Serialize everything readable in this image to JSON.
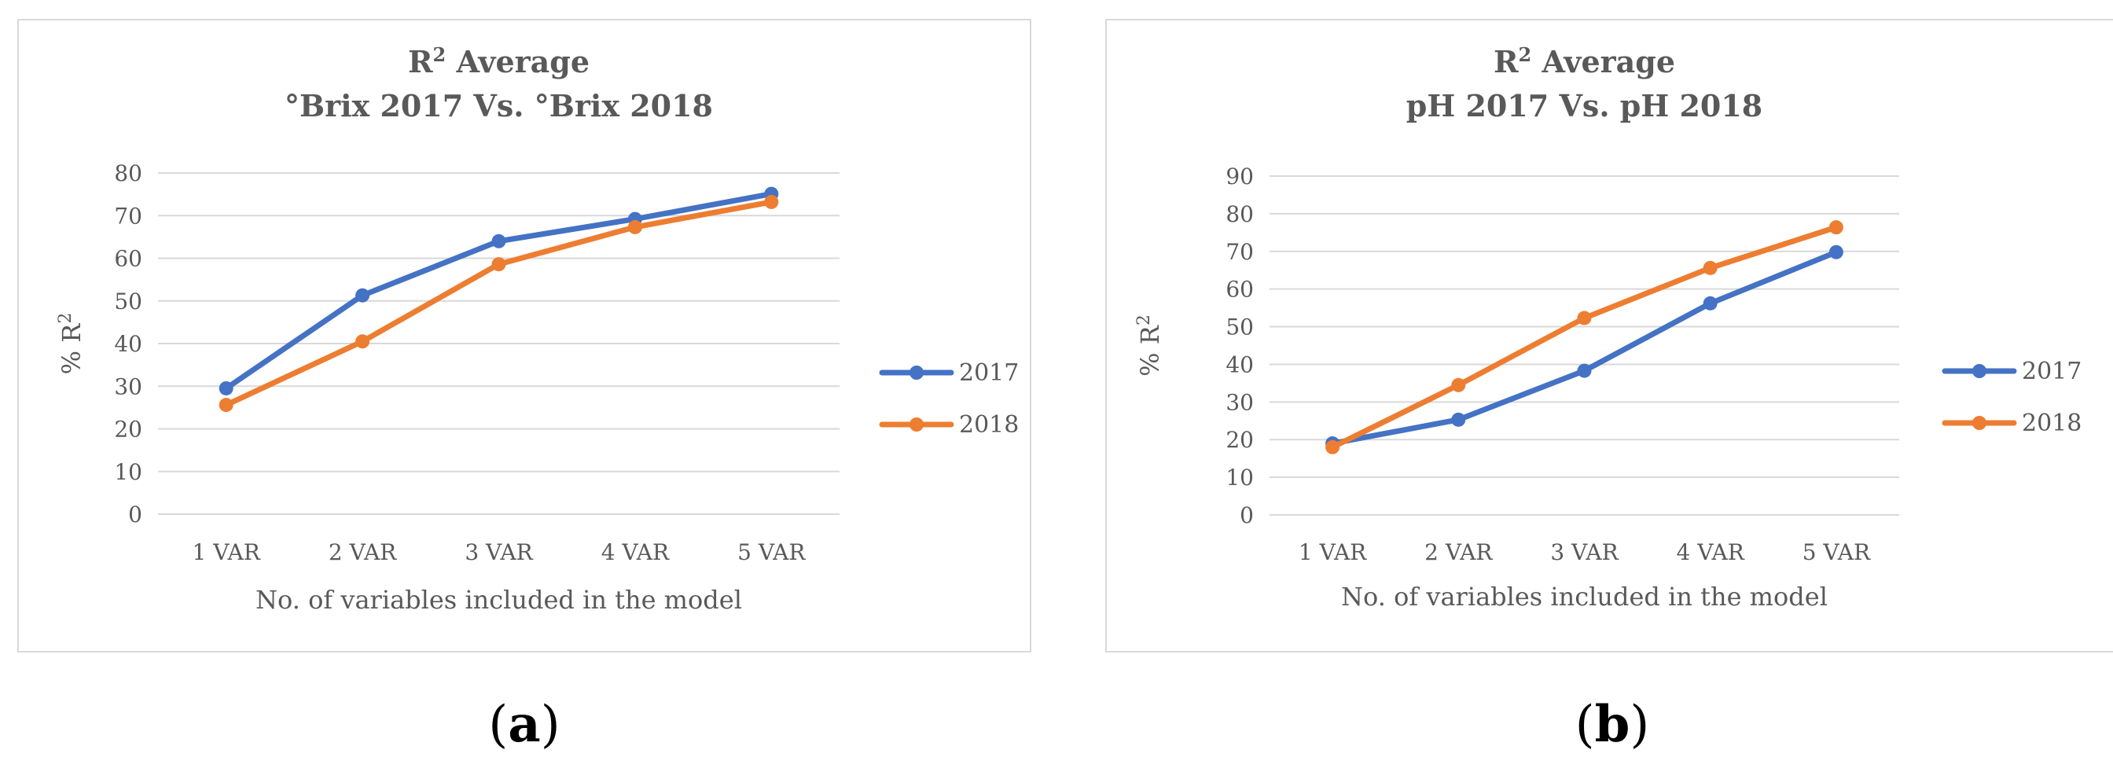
{
  "chart_data": [
    {
      "type": "line",
      "panel_label": "a",
      "title_line1_main": "R",
      "title_line1_sup": "2",
      "title_line1_rest": " Average",
      "title_line2": "°Brix 2017 Vs. °Brix 2018",
      "xlabel": "No. of variables included in the model",
      "ylabel_main": "% R",
      "ylabel_sup": "2",
      "categories": [
        "1 VAR",
        "2 VAR",
        "3 VAR",
        "4 VAR",
        "5 VAR"
      ],
      "ylim": [
        0,
        80
      ],
      "yticks": [
        0,
        10,
        20,
        30,
        40,
        50,
        60,
        70,
        80
      ],
      "legend_position": "right",
      "series": [
        {
          "name": "2017",
          "color": "#4472c4",
          "values": [
            29.5,
            51.3,
            64,
            69.2,
            75.1
          ]
        },
        {
          "name": "2018",
          "color": "#ed7d31",
          "values": [
            25.6,
            40.5,
            58.6,
            67.3,
            73.2
          ]
        }
      ]
    },
    {
      "type": "line",
      "panel_label": "b",
      "title_line1_main": "R",
      "title_line1_sup": "2",
      "title_line1_rest": " Average",
      "title_line2": "pH 2017 Vs. pH 2018",
      "xlabel": "No. of variables included in the model",
      "ylabel_main": "% R",
      "ylabel_sup": "2",
      "categories": [
        "1 VAR",
        "2 VAR",
        "3 VAR",
        "4 VAR",
        "5 VAR"
      ],
      "ylim": [
        0,
        90
      ],
      "yticks": [
        0,
        10,
        20,
        30,
        40,
        50,
        60,
        70,
        80,
        90
      ],
      "legend_position": "right",
      "series": [
        {
          "name": "2017",
          "color": "#4472c4",
          "values": [
            19,
            25.3,
            38.3,
            56.2,
            69.8
          ]
        },
        {
          "name": "2018",
          "color": "#ed7d31",
          "values": [
            18,
            34.5,
            52.3,
            65.6,
            76.4
          ]
        }
      ]
    }
  ],
  "captions": {
    "a_open": "(",
    "a_letter": "a",
    "a_close": ")",
    "b_open": "(",
    "b_letter": "b",
    "b_close": ")"
  }
}
